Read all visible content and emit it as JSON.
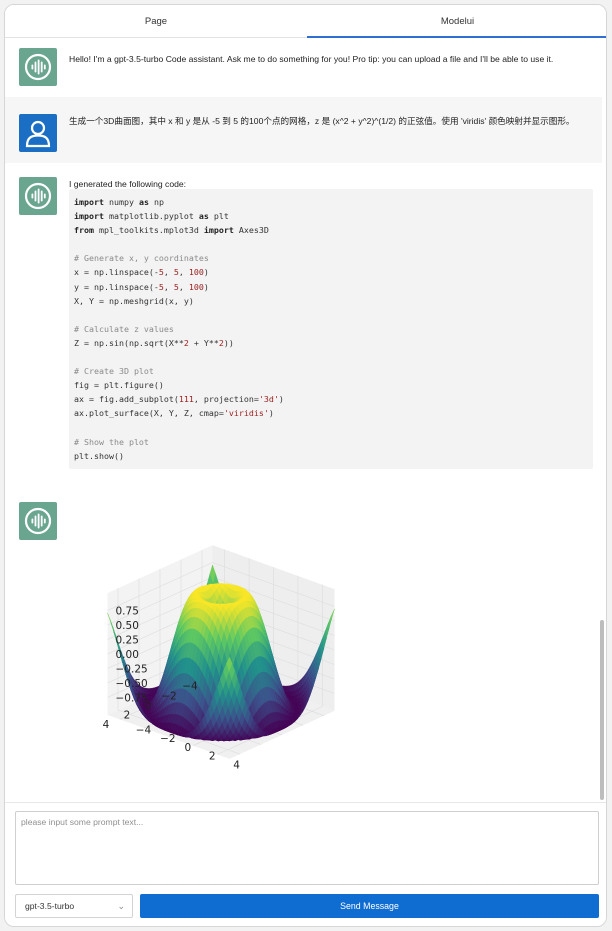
{
  "tabs": [
    {
      "label": "Page",
      "active": false
    },
    {
      "label": "Modelui",
      "active": true
    }
  ],
  "messages": [
    {
      "role": "assistant",
      "avatar_icon": "waveform-icon",
      "text": "Hello! I'm a gpt-3.5-turbo Code assistant. Ask me to do something for you! Pro tip: you can upload a file and I'll be able to use it."
    },
    {
      "role": "user",
      "avatar_icon": "user-icon",
      "text": "生成一个3D曲面图，其中 x 和 y 是从 -5 到 5 的100个点的网格，z 是 (x^2 + y^2)^(1/2) 的正弦值。使用 'viridis' 颜色映射并显示图形。"
    },
    {
      "role": "assistant",
      "avatar_icon": "waveform-icon",
      "text": "I generated the following code:",
      "code": [
        "import numpy as np",
        "import matplotlib.pyplot as plt",
        "from mpl_toolkits.mplot3d import Axes3D",
        "",
        "# Generate x, y coordinates",
        "x = np.linspace(-5, 5, 100)",
        "y = np.linspace(-5, 5, 100)",
        "X, Y = np.meshgrid(x, y)",
        "",
        "# Calculate z values",
        "Z = np.sin(np.sqrt(X**2 + Y**2))",
        "",
        "# Create 3D plot",
        "fig = plt.figure()",
        "ax = fig.add_subplot(111, projection='3d')",
        "ax.plot_surface(X, Y, Z, cmap='viridis')",
        "",
        "# Show the plot",
        "plt.show()"
      ]
    },
    {
      "role": "assistant",
      "avatar_icon": "waveform-icon",
      "type": "image"
    }
  ],
  "chart_data": {
    "type": "surface3d",
    "function": "z = sin(sqrt(x^2 + y^2))",
    "x_range": [
      -5,
      5
    ],
    "y_range": [
      -5,
      5
    ],
    "grid_points": 100,
    "colormap": "viridis",
    "x_ticks": [
      "−4",
      "−2",
      "0",
      "2",
      "4"
    ],
    "y_ticks": [
      "−4",
      "−2",
      "0",
      "2",
      "4"
    ],
    "z_ticks": [
      "0.75",
      "0.50",
      "0.25",
      "0.00",
      "−0.25",
      "−0.50",
      "−0.75"
    ],
    "colors": [
      "#440154",
      "#3b528b",
      "#21918c",
      "#5ec962",
      "#fde725"
    ]
  },
  "footer": {
    "prompt_placeholder": "please input some prompt text...",
    "prompt_value": "",
    "model_selected": "gpt-3.5-turbo",
    "send_label": "Send Message"
  },
  "colors": {
    "accent": "#0f6cd1",
    "bot_avatar": "#6aa590",
    "user_avatar": "#1a6fc4"
  }
}
